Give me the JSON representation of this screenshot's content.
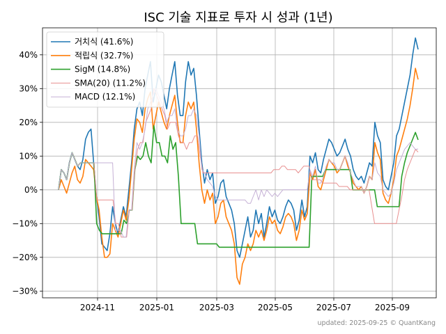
{
  "chart_data": {
    "type": "line",
    "title": "ISC 기술 지표로 투자 시 성과 (1년)",
    "footer": "updated: 2025-09-25 © QuantKang",
    "xlabel": "",
    "ylabel": "",
    "x_ticks": [
      "2024-11",
      "2025-01",
      "2025-03",
      "2025-05",
      "2025-07",
      "2025-09"
    ],
    "y_ticks": [
      "40%",
      "30%",
      "20%",
      "10%",
      "0%",
      "−10%",
      "−20%",
      "−30%"
    ],
    "y_tick_values": [
      40,
      30,
      20,
      10,
      0,
      -10,
      -20,
      -30
    ],
    "ylim": [
      -32,
      48
    ],
    "grid": true,
    "legend_position": "top-left",
    "series": [
      {
        "name": "거치식 (41.6%)",
        "color": "#1f77b4",
        "width": 1.6,
        "values": [
          0,
          6,
          5,
          3,
          8,
          11,
          9,
          7,
          6,
          9,
          15,
          17,
          18,
          8,
          -2,
          -8,
          -16,
          -17,
          -18,
          -13,
          -5,
          -10,
          -13,
          -9,
          -5,
          -8,
          0,
          8,
          18,
          24,
          26,
          22,
          30,
          34,
          38,
          26,
          30,
          34,
          32,
          28,
          24,
          30,
          34,
          38,
          28,
          22,
          22,
          32,
          38,
          34,
          36,
          28,
          18,
          8,
          2,
          6,
          3,
          5,
          -4,
          -2,
          2,
          3,
          -2,
          -4,
          -6,
          -10,
          -18,
          -20,
          -16,
          -12,
          -8,
          -14,
          -12,
          -6,
          -10,
          -7,
          -14,
          -10,
          -5,
          -8,
          -6,
          -9,
          -10,
          -8,
          -5,
          -3,
          -4,
          -6,
          -12,
          -9,
          -3,
          -8,
          -5,
          10,
          8,
          11,
          6,
          5,
          9,
          12,
          15,
          14,
          12,
          10,
          11,
          13,
          15,
          12,
          10,
          6,
          4,
          3,
          4,
          2,
          5,
          8,
          7,
          20,
          16,
          14,
          3,
          1,
          0,
          4,
          8,
          16,
          18,
          22,
          26,
          30,
          34,
          40,
          45,
          41.6
        ]
      },
      {
        "name": "적립식 (32.7%)",
        "color": "#ff7f0e",
        "width": 1.6,
        "values": [
          0,
          3,
          1,
          -1,
          2,
          5,
          7,
          3,
          2,
          4,
          9,
          8,
          7,
          6,
          -2,
          -6,
          -14,
          -20,
          -20,
          -19,
          -10,
          -12,
          -14,
          -10,
          -6,
          -9,
          -3,
          6,
          15,
          21,
          20,
          17,
          24,
          27,
          29,
          18,
          22,
          26,
          23,
          20,
          18,
          22,
          25,
          28,
          20,
          14,
          14,
          22,
          26,
          24,
          26,
          18,
          8,
          0,
          -4,
          0,
          -3,
          -1,
          -10,
          -8,
          -4,
          -3,
          -8,
          -10,
          -12,
          -16,
          -26,
          -28,
          -22,
          -20,
          -16,
          -18,
          -16,
          -12,
          -14,
          -12,
          -15,
          -12,
          -8,
          -10,
          -9,
          -12,
          -13,
          -11,
          -8,
          -7,
          -8,
          -10,
          -15,
          -12,
          -6,
          -9,
          -7,
          5,
          3,
          6,
          1,
          0,
          3,
          6,
          9,
          8,
          7,
          5,
          6,
          8,
          10,
          7,
          5,
          2,
          1,
          0,
          1,
          -1,
          1,
          4,
          3,
          14,
          11,
          9,
          -1,
          -3,
          -4,
          -1,
          3,
          10,
          12,
          15,
          18,
          21,
          25,
          30,
          36,
          32.7
        ]
      },
      {
        "name": "SigM (14.8%)",
        "color": "#2ca02c",
        "width": 1.6,
        "values": [
          0,
          6,
          5,
          3,
          8,
          11,
          9,
          7,
          8,
          8,
          8,
          8,
          8,
          8,
          -10,
          -12,
          -13,
          -13,
          -13,
          -13,
          -13,
          -13,
          -13,
          -13,
          -9,
          -10,
          -6,
          -6,
          6,
          10,
          9,
          10,
          14,
          10,
          8,
          19,
          14,
          14,
          10,
          10,
          8,
          16,
          12,
          14,
          4,
          -10,
          -10,
          -10,
          -10,
          -10,
          -10,
          -16,
          -16,
          -16,
          -16,
          -16,
          -16,
          -16,
          -16,
          -17,
          -17,
          -17,
          -17,
          -17,
          -17,
          -17,
          -17,
          -17,
          -17,
          -17,
          -17,
          -17,
          -17,
          -17,
          -17,
          -17,
          -17,
          -17,
          -17,
          -17,
          -17,
          -17,
          -17,
          -17,
          -17,
          -17,
          -17,
          -17,
          -17,
          -17,
          -17,
          -17,
          -17,
          4,
          4,
          4,
          4,
          4,
          6,
          6,
          6,
          6,
          6,
          6,
          6,
          6,
          6,
          6,
          0,
          0,
          0,
          0,
          0,
          0,
          0,
          0,
          0,
          -5,
          -5,
          -5,
          -5,
          -5,
          -5,
          -5,
          -5,
          -5,
          4,
          8,
          11,
          13,
          15,
          17,
          14.8
        ]
      },
      {
        "name": "SMA(20) (11.2%)",
        "color": "#e88f8f",
        "width": 1.0,
        "values": [
          0,
          6,
          5,
          3,
          8,
          11,
          9,
          7,
          8,
          8,
          8,
          8,
          8,
          8,
          -3,
          -3,
          -3,
          -3,
          -3,
          -3,
          -3,
          -10,
          -10,
          -14,
          -14,
          -14,
          -6,
          -6,
          6,
          12,
          14,
          14,
          20,
          22,
          24,
          30,
          28,
          26,
          24,
          22,
          18,
          20,
          20,
          20,
          16,
          14,
          14,
          12,
          14,
          14,
          16,
          16,
          10,
          5,
          5,
          5,
          5,
          5,
          5,
          5,
          5,
          5,
          5,
          5,
          5,
          5,
          5,
          5,
          5,
          5,
          5,
          5,
          5,
          5,
          5,
          5,
          5,
          5,
          5,
          6,
          6,
          6,
          7,
          7,
          6,
          6,
          6,
          6,
          5,
          6,
          7,
          7,
          7,
          3,
          3,
          3,
          3,
          2,
          2,
          2,
          2,
          2,
          2,
          1,
          1,
          1,
          1,
          0,
          0,
          0,
          0,
          0,
          0,
          0,
          0,
          -5,
          -10,
          -10,
          -10,
          -10,
          -10,
          -10,
          -10,
          -10,
          -10,
          -6,
          -2,
          3,
          6,
          8,
          10,
          12,
          11.2
        ]
      },
      {
        "name": "MACD (12.1%)",
        "color": "#c5b0d5",
        "width": 1.0,
        "values": [
          0,
          6,
          5,
          3,
          8,
          11,
          9,
          7,
          8,
          8,
          8,
          8,
          8,
          8,
          8,
          8,
          8,
          8,
          8,
          8,
          8,
          -12,
          -12,
          -12,
          -14,
          -14,
          -6,
          -6,
          6,
          14,
          12,
          14,
          18,
          24,
          26,
          28,
          30,
          28,
          26,
          24,
          20,
          22,
          22,
          24,
          18,
          16,
          16,
          18,
          22,
          22,
          24,
          22,
          16,
          6,
          5,
          3,
          2,
          1,
          -2,
          -3,
          -3,
          -3,
          -3,
          -3,
          -3,
          -3,
          -3,
          -3,
          -3,
          -3,
          -4,
          -4,
          -2,
          0,
          -3,
          0,
          -2,
          0,
          -1,
          -2,
          -1,
          -2,
          -1,
          0,
          0,
          0,
          0,
          0,
          0,
          0,
          0,
          0,
          0,
          6,
          4,
          7,
          2,
          2,
          4,
          7,
          9,
          8,
          8,
          6,
          6,
          8,
          10,
          8,
          5,
          3,
          1,
          1,
          1,
          -1,
          1,
          4,
          3,
          8,
          5,
          4,
          0,
          -1,
          -2,
          -1,
          2,
          6,
          8,
          10,
          12,
          13,
          14,
          13,
          12,
          12.1
        ]
      }
    ]
  }
}
